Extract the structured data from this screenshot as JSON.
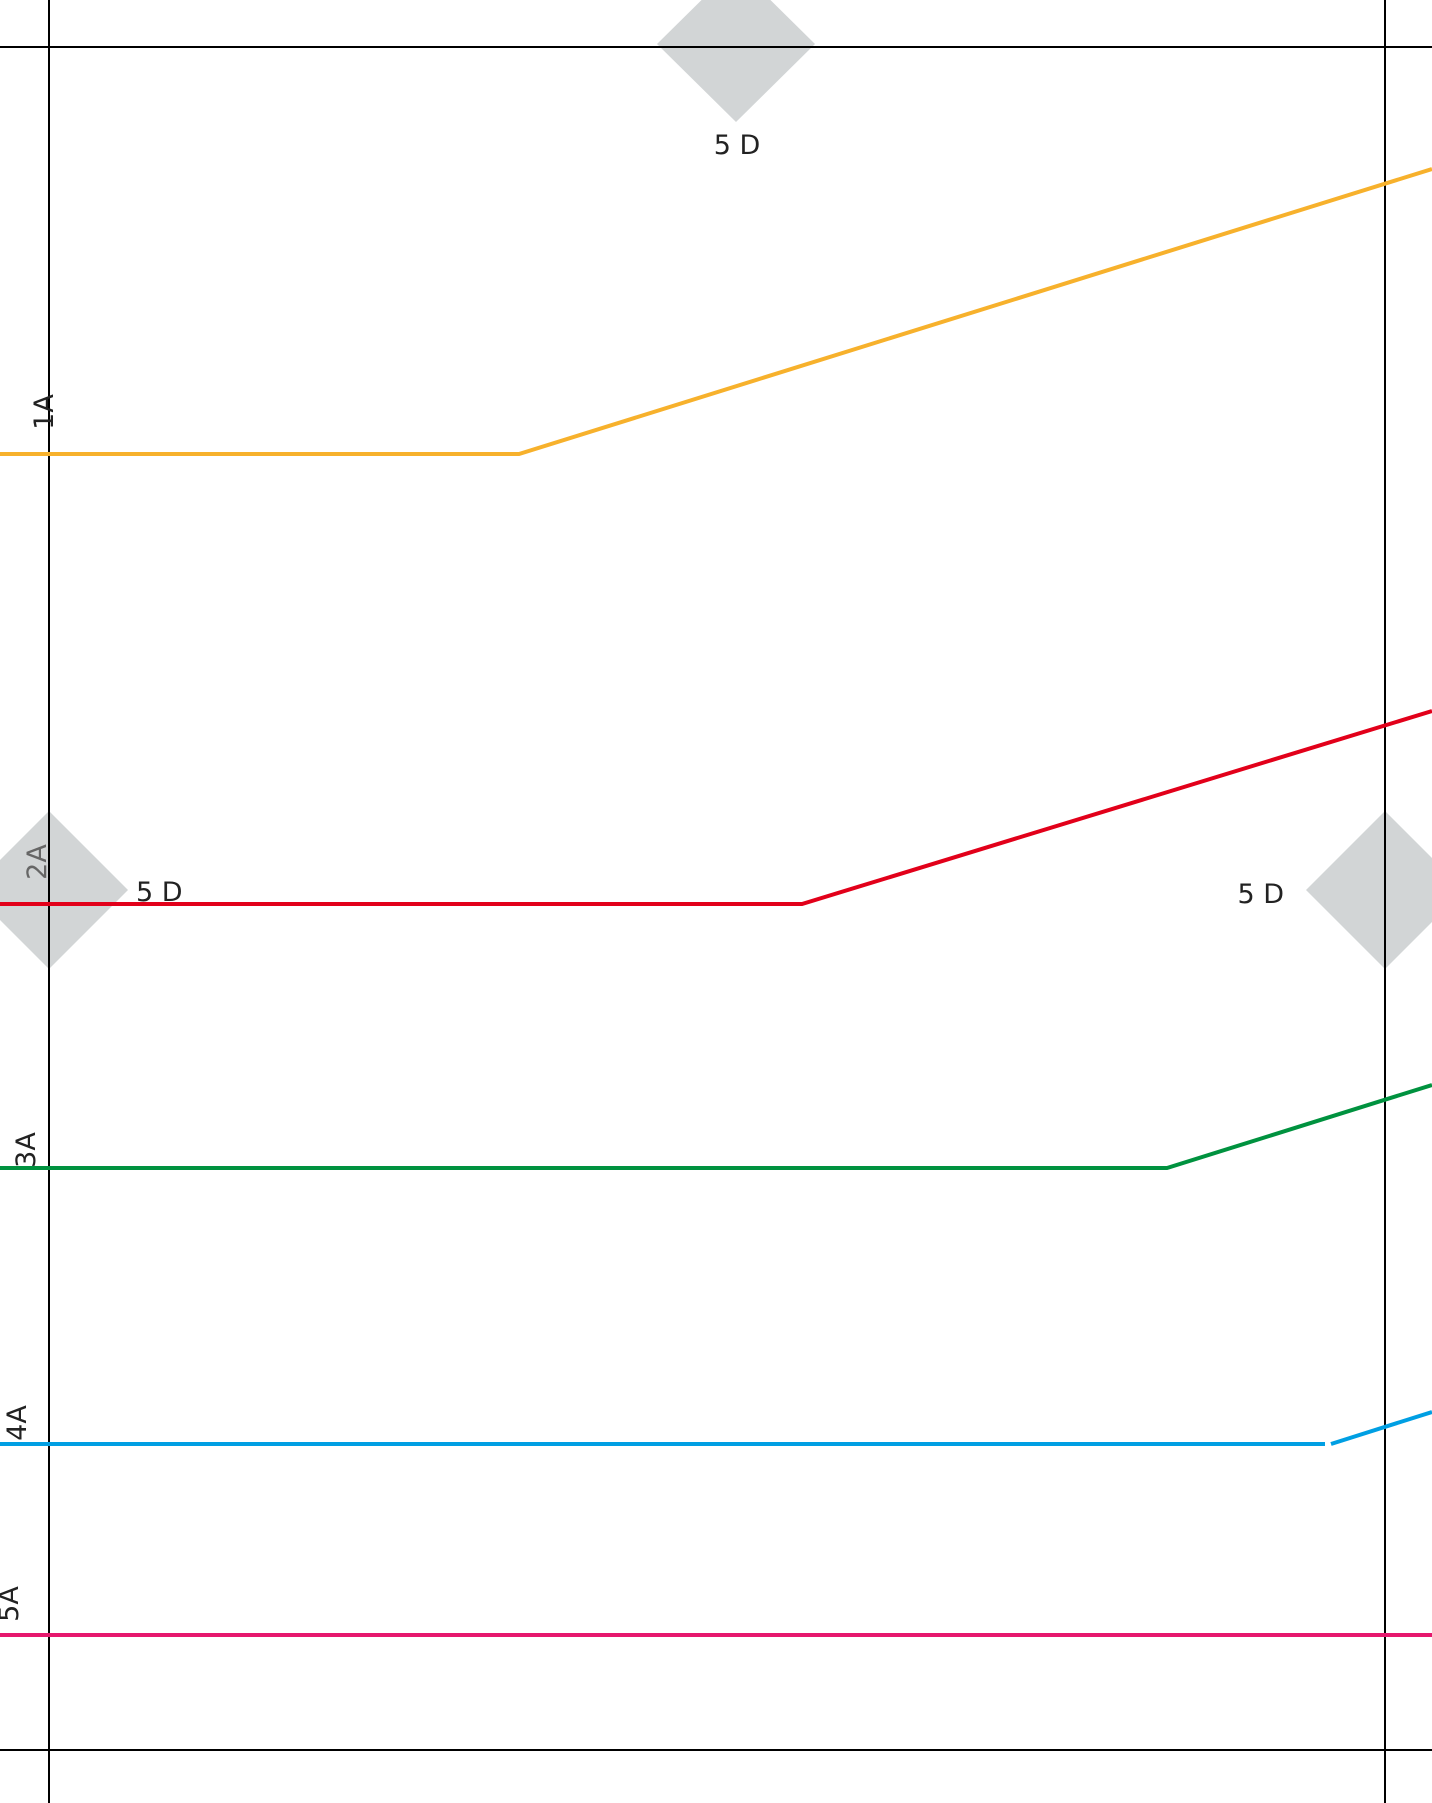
{
  "diagram": {
    "markers": [
      {
        "id": "marker-top",
        "label": "5 D"
      },
      {
        "id": "marker-left",
        "label": "5 D"
      },
      {
        "id": "marker-right",
        "label": "5 D"
      }
    ],
    "lines": [
      {
        "id": "line-1a",
        "label": "1A",
        "color": "#f7b12c"
      },
      {
        "id": "line-2a",
        "label": "2A",
        "color": "#e2001a"
      },
      {
        "id": "line-3a",
        "label": "3A",
        "color": "#00923f"
      },
      {
        "id": "line-4a",
        "label": "4A",
        "color": "#009fe3"
      },
      {
        "id": "line-5a",
        "label": "5A",
        "color": "#e6186d"
      }
    ],
    "colors": {
      "frame": "#000000",
      "marker_fill": "#d2d5d6",
      "background": "#ffffff"
    }
  }
}
